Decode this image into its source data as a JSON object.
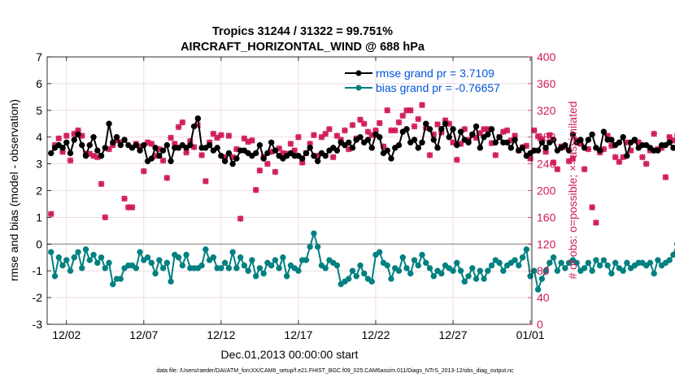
{
  "chart_data": {
    "type": "line",
    "title_line1": "Tropics 31244 / 31322 = 99.751%",
    "title_line2": "AIRCRAFT_HORIZONTAL_WIND @ 688 hPa",
    "xlabel": "Dec.01,2013 00:00:00 start",
    "ylabel_left": "rmse and bias (model - observation)",
    "ylabel_right": "# of obs: o=possible; ×=assimilated",
    "footer": "data file: /Users/raeder/DAI/ATM_forcXX/CAM6_setup/f.e21.FHIST_BGC.f09_025.CAM6assim.011/Diags_NTrS_2013-12/obs_diag_output.nc",
    "x_ticks": [
      {
        "day": 2,
        "label": "12/02"
      },
      {
        "day": 7,
        "label": "12/07"
      },
      {
        "day": 12,
        "label": "12/12"
      },
      {
        "day": 17,
        "label": "12/17"
      },
      {
        "day": 22,
        "label": "12/22"
      },
      {
        "day": 27,
        "label": "12/27"
      },
      {
        "day": 32,
        "label": "01/01"
      }
    ],
    "xlim": [
      0.75,
      32.1
    ],
    "ylim_left": [
      -3,
      7
    ],
    "yticks_left": [
      "-3",
      "-2",
      "-1",
      "0",
      "1",
      "2",
      "3",
      "4",
      "5",
      "6",
      "7"
    ],
    "ylim_right": [
      0,
      400
    ],
    "yticks_right": [
      "0",
      "40",
      "80",
      "120",
      "160",
      "200",
      "240",
      "280",
      "320",
      "360",
      "400"
    ],
    "zero_line": 0,
    "colors": {
      "rmse": "#000000",
      "bias": "#008080",
      "obs": "#d11a57",
      "legend_text": "#0055dd",
      "zero_line": "#aaaaaa",
      "grid": "#e6c8d6"
    },
    "legend": [
      {
        "series": "rmse",
        "label": "rmse grand pr = 3.7109"
      },
      {
        "series": "bias",
        "label": "bias grand pr = -0.76657"
      }
    ],
    "x_start_day": 1,
    "x_step_days": 0.25,
    "rmse": [
      3.4,
      3.6,
      3.7,
      3.6,
      3.8,
      3.4,
      3.9,
      4.1,
      3.7,
      3.3,
      3.7,
      4.0,
      3.5,
      3.3,
      3.6,
      4.5,
      3.8,
      4.0,
      3.7,
      3.9,
      3.7,
      3.6,
      3.7,
      3.5,
      3.7,
      3.1,
      3.2,
      3.6,
      3.3,
      3.5,
      3.7,
      3.1,
      3.6,
      3.6,
      3.7,
      3.6,
      3.7,
      4.4,
      4.7,
      3.6,
      3.6,
      3.7,
      3.5,
      3.6,
      3.3,
      3.1,
      3.4,
      3.0,
      3.2,
      3.5,
      3.5,
      3.4,
      3.3,
      3.4,
      3.7,
      3.2,
      3.4,
      3.8,
      3.5,
      3.3,
      3.2,
      3.3,
      3.4,
      3.3,
      3.3,
      3.2,
      3.4,
      3.6,
      3.3,
      3.1,
      3.4,
      3.3,
      3.5,
      3.6,
      3.5,
      3.8,
      3.7,
      3.8,
      3.6,
      3.9,
      4.0,
      3.8,
      3.9,
      3.6,
      4.1,
      4.0,
      3.4,
      3.5,
      3.2,
      3.6,
      3.7,
      4.2,
      4.3,
      3.8,
      3.9,
      3.6,
      3.8,
      4.5,
      4.3,
      3.9,
      3.6,
      4.3,
      4.5,
      4.0,
      4.3,
      3.7,
      4.2,
      3.9,
      3.8,
      4.1,
      4.4,
      3.6,
      4.0,
      4.1,
      4.3,
      3.8,
      4.0,
      3.8,
      3.8,
      3.6,
      3.9,
      3.5,
      3.6,
      3.3,
      3.4,
      3.5,
      3.5,
      3.8,
      3.6,
      3.8,
      3.9,
      3.5,
      3.6,
      3.7,
      3.5,
      4.1,
      3.8,
      3.9,
      3.6,
      3.9,
      4.1,
      3.6,
      3.5,
      4.2,
      3.9,
      3.9,
      3.7,
      3.8,
      4.0,
      3.3,
      3.8,
      3.9,
      3.6,
      3.7,
      3.7,
      3.6,
      3.5,
      3.5,
      3.7,
      3.7,
      3.8,
      3.6,
      3.6,
      4.2,
      3.9,
      4.1,
      3.8,
      4.2,
      4.8,
      3.9,
      3.9
    ],
    "bias": [
      -0.3,
      -1.2,
      -0.5,
      -0.8,
      -0.6,
      -1.0,
      -0.5,
      -0.3,
      -0.9,
      -0.2,
      -0.6,
      -0.4,
      -0.7,
      -0.5,
      -0.9,
      -0.7,
      -1.5,
      -1.3,
      -1.3,
      -0.9,
      -0.8,
      -0.8,
      -0.9,
      -0.3,
      -0.6,
      -0.5,
      -0.7,
      -1.1,
      -0.6,
      -0.9,
      -0.7,
      -1.4,
      -0.4,
      -0.5,
      -0.8,
      -0.4,
      -0.9,
      -0.9,
      -0.9,
      -0.8,
      -0.2,
      -0.6,
      -0.5,
      -0.9,
      -0.9,
      -0.7,
      -0.9,
      -0.3,
      -0.9,
      -0.5,
      -0.8,
      -1.0,
      -0.6,
      -1.2,
      -0.9,
      -1.1,
      -0.7,
      -0.8,
      -0.6,
      -0.9,
      -0.5,
      -1.2,
      -0.8,
      -0.9,
      -1.0,
      -0.6,
      -0.6,
      -0.1,
      0.4,
      -0.1,
      -0.8,
      -0.9,
      -0.6,
      -0.7,
      -0.8,
      -1.5,
      -1.4,
      -1.3,
      -1.0,
      -1.2,
      -0.8,
      -1.1,
      -1.3,
      -1.4,
      -0.4,
      -0.3,
      -0.7,
      -0.8,
      -1.3,
      -0.9,
      -1.0,
      -0.5,
      -0.9,
      -1.1,
      -0.6,
      -0.8,
      -0.4,
      -0.7,
      -0.9,
      -1.2,
      -1.0,
      -1.1,
      -0.8,
      -0.9,
      -1.0,
      -0.7,
      -1.0,
      -1.4,
      -1.2,
      -0.9,
      -1.3,
      -1.0,
      -1.3,
      -1.0,
      -0.8,
      -0.6,
      -0.7,
      -1.0,
      -0.8,
      -0.7,
      -0.6,
      -0.8,
      -0.5,
      -0.2,
      -1.2,
      -1.0,
      -1.7,
      -1.3,
      -1.0,
      -0.7,
      -0.5,
      -1.0,
      -0.7,
      -0.9,
      -0.7,
      -0.6,
      -0.7,
      -1.0,
      -0.9,
      -0.7,
      -1.0,
      -0.6,
      -0.8,
      -0.6,
      -0.8,
      -1.1,
      -0.7,
      -0.9,
      -1.0,
      -0.7,
      -0.9,
      -0.8,
      -0.7,
      -0.7,
      -0.8,
      -0.7,
      -1.1,
      -0.6,
      -0.8,
      -0.7,
      -0.6,
      -0.4,
      -0.0,
      -0.6,
      -0.9,
      -0.9,
      -1.1,
      -0.9,
      -0.6,
      -0.9,
      -0.6,
      -0.5
    ],
    "obs_possible": [
      165,
      268,
      278,
      258,
      282,
      245,
      285,
      290,
      282,
      255,
      255,
      252,
      250,
      210,
      160,
      262,
      268,
      275,
      272,
      188,
      175,
      175,
      270,
      266,
      229,
      272,
      270,
      252,
      262,
      245,
      219,
      279,
      270,
      295,
      302,
      257,
      274,
      265,
      307,
      253,
      214,
      272,
      285,
      279,
      283,
      250,
      282,
      250,
      262,
      158,
      278,
      273,
      275,
      201,
      230,
      250,
      240,
      258,
      228,
      263,
      256,
      255,
      270,
      260,
      280,
      242,
      256,
      270,
      283,
      252,
      280,
      285,
      292,
      250,
      282,
      276,
      290,
      262,
      298,
      278,
      306,
      300,
      288,
      283,
      290,
      301,
      266,
      320,
      290,
      290,
      302,
      312,
      320,
      320,
      296,
      307,
      328,
      294,
      253,
      284,
      299,
      287,
      305,
      300,
      272,
      246,
      270,
      292,
      276,
      283,
      279,
      286,
      292,
      292,
      271,
      253,
      280,
      288,
      290,
      275,
      282,
      260,
      265,
      267,
      248,
      290,
      281,
      277,
      258,
      283,
      242,
      232,
      266,
      265,
      244,
      248,
      275,
      270,
      232,
      262,
      175,
      152,
      257,
      262,
      282,
      267,
      250,
      243,
      250,
      272,
      260,
      275,
      272,
      250,
      240,
      260,
      285,
      262,
      264,
      220,
      280,
      275,
      282,
      240,
      205,
      285,
      266,
      300,
      150,
      250,
      255,
      270,
      283,
      262,
      243
    ],
    "obs_assimilated": [
      165,
      268,
      278,
      258,
      282,
      245,
      285,
      290,
      282,
      255,
      255,
      252,
      250,
      210,
      160,
      262,
      268,
      275,
      272,
      188,
      175,
      175,
      270,
      266,
      229,
      272,
      270,
      252,
      262,
      245,
      219,
      279,
      270,
      295,
      302,
      257,
      274,
      265,
      298,
      253,
      214,
      272,
      285,
      279,
      283,
      250,
      282,
      250,
      262,
      158,
      278,
      273,
      275,
      201,
      230,
      250,
      240,
      258,
      228,
      263,
      256,
      255,
      270,
      260,
      280,
      242,
      256,
      270,
      283,
      252,
      280,
      285,
      292,
      250,
      282,
      276,
      290,
      262,
      298,
      278,
      306,
      300,
      288,
      283,
      290,
      301,
      266,
      320,
      290,
      290,
      302,
      312,
      320,
      320,
      296,
      307,
      328,
      294,
      253,
      284,
      299,
      287,
      305,
      300,
      272,
      246,
      270,
      292,
      276,
      283,
      279,
      286,
      292,
      292,
      271,
      253,
      280,
      288,
      290,
      275,
      282,
      260,
      265,
      267,
      248,
      290,
      281,
      277,
      258,
      283,
      242,
      232,
      266,
      265,
      244,
      248,
      275,
      270,
      232,
      262,
      175,
      152,
      257,
      262,
      282,
      267,
      250,
      243,
      250,
      272,
      260,
      275,
      272,
      250,
      240,
      260,
      285,
      262,
      264,
      220,
      280,
      275,
      282,
      240,
      205,
      285,
      266,
      300,
      150,
      250,
      255,
      270,
      283,
      262,
      243
    ]
  }
}
